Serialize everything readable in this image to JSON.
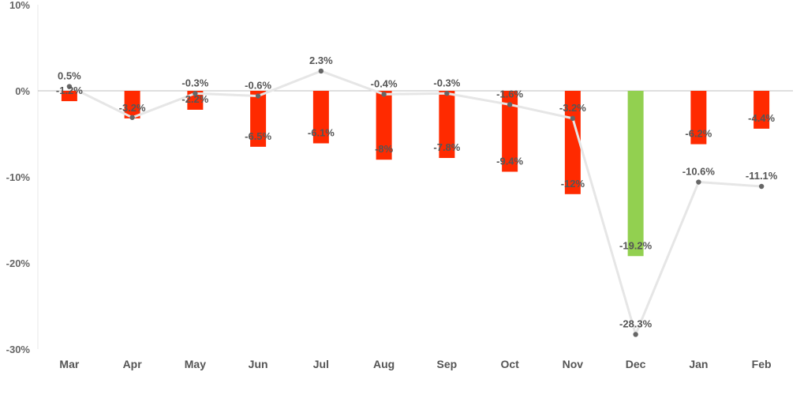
{
  "chart_data": {
    "type": "bar",
    "categories": [
      "Mar",
      "Apr",
      "May",
      "Jun",
      "Jul",
      "Aug",
      "Sep",
      "Oct",
      "Nov",
      "Dec",
      "Jan",
      "Feb"
    ],
    "series": [
      {
        "type": "bar",
        "values": [
          -1.2,
          -3.2,
          -2.2,
          -6.5,
          -6.1,
          -8.0,
          -7.8,
          -9.4,
          -12.0,
          -19.2,
          -6.2,
          -4.4
        ],
        "labels": [
          "-1.2%",
          "-3.2%",
          "-2.2%",
          "-6.5%",
          "-6.1%",
          "-8%",
          "-7.8%",
          "-9.4%",
          "-12%",
          "-19.2%",
          "-6.2%",
          "-4.4%"
        ],
        "colors": [
          "#ff2a00",
          "#ff2a00",
          "#ff2a00",
          "#ff2a00",
          "#ff2a00",
          "#ff2a00",
          "#ff2a00",
          "#ff2a00",
          "#ff2a00",
          "#92d050",
          "#ff2a00",
          "#ff2a00"
        ]
      },
      {
        "type": "line",
        "values": [
          0.5,
          -3.1,
          -0.3,
          -0.6,
          2.3,
          -0.4,
          -0.3,
          -1.6,
          -3.2,
          -28.3,
          -10.6,
          -11.1
        ],
        "labels": [
          "0.5%",
          "",
          "-0.3%",
          "-0.6%",
          "2.3%",
          "-0.4%",
          "-0.3%",
          "-1.6%",
          "-3.2%",
          "-28.3%",
          "-10.6%",
          "-11.1%"
        ],
        "color": "#e6e6e6",
        "marker_color": "#666666"
      }
    ],
    "yticks": [
      "10%",
      "0%",
      "-10%",
      "-20%",
      "-30%"
    ],
    "ylim": [
      -30,
      10
    ],
    "ytick_values": [
      10,
      0,
      -10,
      -20,
      -30
    ],
    "title": "",
    "xlabel": "",
    "ylabel": ""
  }
}
